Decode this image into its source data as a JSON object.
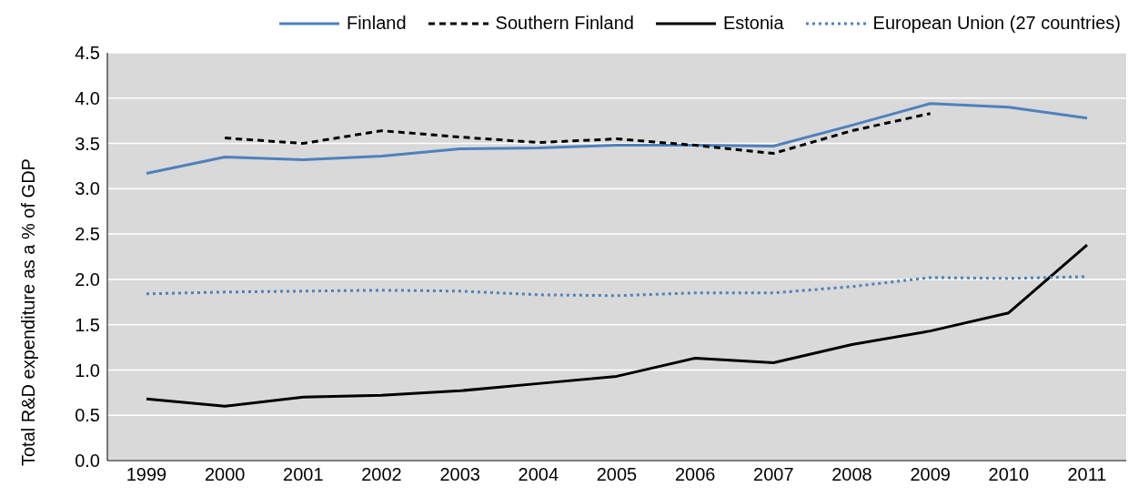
{
  "chart_data": {
    "type": "line",
    "ylabel": "Total R&D expenditure as a % of GDP",
    "categories": [
      "1999",
      "2000",
      "2001",
      "2002",
      "2003",
      "2004",
      "2005",
      "2006",
      "2007",
      "2008",
      "2009",
      "2010",
      "2011"
    ],
    "series": [
      {
        "name": "Finland",
        "color": "#4f81bd",
        "line_style": "solid",
        "values": [
          3.17,
          3.35,
          3.32,
          3.36,
          3.44,
          3.45,
          3.48,
          3.48,
          3.47,
          3.7,
          3.94,
          3.9,
          3.78
        ]
      },
      {
        "name": "Southern Finland",
        "color": "#000000",
        "line_style": "dashed",
        "values": [
          null,
          3.56,
          3.5,
          3.64,
          3.57,
          3.51,
          3.55,
          3.48,
          3.39,
          3.64,
          3.83,
          null,
          null
        ]
      },
      {
        "name": "Estonia",
        "color": "#000000",
        "line_style": "solid",
        "values": [
          0.68,
          0.6,
          0.7,
          0.72,
          0.77,
          0.85,
          0.93,
          1.13,
          1.08,
          1.28,
          1.43,
          1.63,
          2.38
        ]
      },
      {
        "name": "European Union (27 countries)",
        "color": "#4f81bd",
        "line_style": "dotted",
        "values": [
          1.84,
          1.86,
          1.87,
          1.88,
          1.87,
          1.83,
          1.82,
          1.85,
          1.85,
          1.92,
          2.02,
          2.01,
          2.03
        ]
      }
    ],
    "ylim": [
      0,
      4.5
    ],
    "yticks": [
      {
        "value": 0,
        "label": "0.0"
      },
      0.5,
      {
        "value": 1,
        "label": "1.0"
      },
      1.5,
      {
        "value": 2,
        "label": "2.0"
      },
      2.5,
      {
        "value": 3,
        "label": "3.0"
      },
      3.5,
      {
        "value": 4,
        "label": "4.0"
      },
      4.5
    ],
    "grid": "y",
    "legend": "top right",
    "marker": "none"
  }
}
